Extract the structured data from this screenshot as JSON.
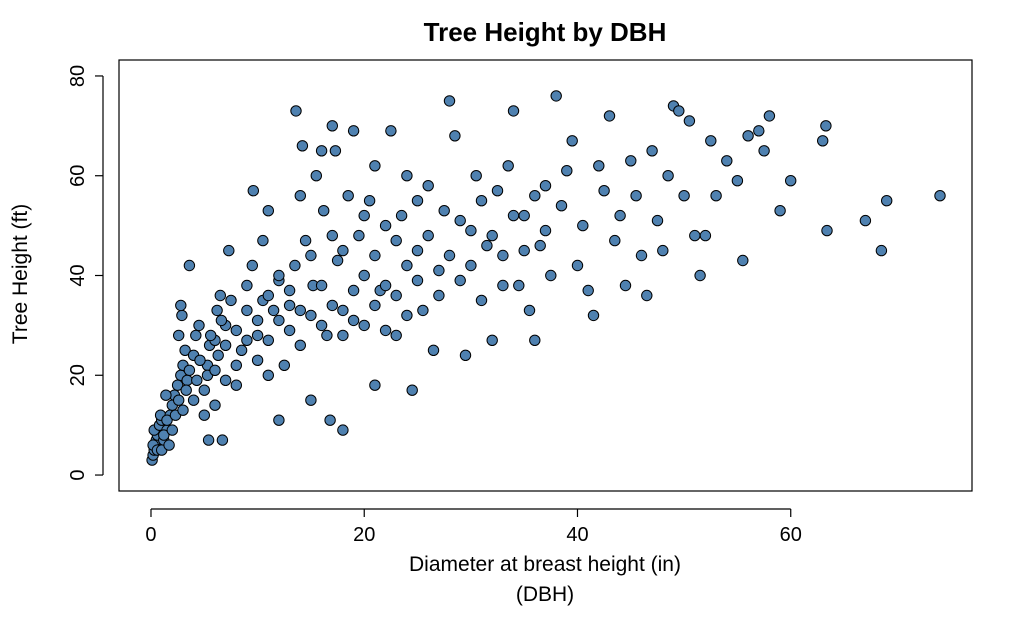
{
  "chart_data": {
    "type": "scatter",
    "title": "Tree Height by DBH",
    "xlabel_line1": "Diameter at breast height (in)",
    "xlabel_line2": "(DBH)",
    "ylabel": "Tree Height (ft)",
    "xlim": [
      -3,
      77
    ],
    "ylim": [
      -3.2,
      83.2
    ],
    "xticks": [
      0,
      20,
      40,
      60
    ],
    "yticks": [
      0,
      20,
      40,
      60,
      80
    ],
    "grid": false,
    "legend": "none",
    "point_fill": "#4f81b0",
    "point_stroke": "#000000",
    "series": [
      {
        "points": [
          [
            0.1,
            3
          ],
          [
            0.2,
            4
          ],
          [
            0.3,
            5
          ],
          [
            0.4,
            6
          ],
          [
            0.5,
            7
          ],
          [
            0.6,
            8
          ],
          [
            0.3,
            9
          ],
          [
            0.8,
            10
          ],
          [
            1.0,
            11
          ],
          [
            0.9,
            12
          ],
          [
            0.2,
            6
          ],
          [
            0.6,
            5
          ],
          [
            1.2,
            7
          ],
          [
            1.5,
            9
          ],
          [
            1.8,
            12
          ],
          [
            2.0,
            14
          ],
          [
            2.2,
            16
          ],
          [
            1.4,
            16
          ],
          [
            2.5,
            18
          ],
          [
            2.8,
            20
          ],
          [
            3.0,
            22
          ],
          [
            3.2,
            25
          ],
          [
            2.6,
            28
          ],
          [
            2.9,
            32
          ],
          [
            2.8,
            34
          ],
          [
            3.6,
            42
          ],
          [
            3.4,
            19
          ],
          [
            4.0,
            24
          ],
          [
            4.2,
            28
          ],
          [
            4.5,
            30
          ],
          [
            5.0,
            12
          ],
          [
            5.3,
            22
          ],
          [
            5.5,
            26
          ],
          [
            6.0,
            27
          ],
          [
            6.2,
            33
          ],
          [
            6.5,
            36
          ],
          [
            5.4,
            7
          ],
          [
            6.7,
            7
          ],
          [
            7.0,
            30
          ],
          [
            7.5,
            35
          ],
          [
            7.3,
            45
          ],
          [
            8.0,
            18
          ],
          [
            8.5,
            25
          ],
          [
            9.0,
            38
          ],
          [
            9.5,
            42
          ],
          [
            9.6,
            57
          ],
          [
            10.0,
            28
          ],
          [
            10.5,
            35
          ],
          [
            10.5,
            47
          ],
          [
            11.0,
            53
          ],
          [
            11.0,
            20
          ],
          [
            11.5,
            33
          ],
          [
            12.0,
            39
          ],
          [
            12.0,
            11
          ],
          [
            12.5,
            22
          ],
          [
            13.0,
            34
          ],
          [
            13.5,
            42
          ],
          [
            13.6,
            73
          ],
          [
            14.0,
            56
          ],
          [
            14.2,
            66
          ],
          [
            14.5,
            47
          ],
          [
            15.0,
            15
          ],
          [
            15.2,
            38
          ],
          [
            15.5,
            60
          ],
          [
            16.0,
            65
          ],
          [
            16.2,
            53
          ],
          [
            16.5,
            28
          ],
          [
            16.8,
            11
          ],
          [
            17.0,
            70
          ],
          [
            17.3,
            65
          ],
          [
            17.5,
            43
          ],
          [
            18.0,
            9
          ],
          [
            18.0,
            33
          ],
          [
            18.5,
            56
          ],
          [
            19.0,
            69
          ],
          [
            19.5,
            48
          ],
          [
            20.0,
            40
          ],
          [
            20.5,
            55
          ],
          [
            21.0,
            62
          ],
          [
            21.0,
            18
          ],
          [
            21.5,
            37
          ],
          [
            22.0,
            50
          ],
          [
            22.5,
            69
          ],
          [
            23.0,
            28
          ],
          [
            23.5,
            52
          ],
          [
            24.0,
            60
          ],
          [
            24.5,
            17
          ],
          [
            25.0,
            45
          ],
          [
            25.5,
            33
          ],
          [
            26.0,
            58
          ],
          [
            26.5,
            25
          ],
          [
            27.0,
            41
          ],
          [
            27.5,
            53
          ],
          [
            28.0,
            75
          ],
          [
            28.5,
            68
          ],
          [
            29.0,
            39
          ],
          [
            29.5,
            24
          ],
          [
            30.0,
            49
          ],
          [
            30.5,
            60
          ],
          [
            31.0,
            35
          ],
          [
            31.5,
            46
          ],
          [
            32.0,
            27
          ],
          [
            32.5,
            57
          ],
          [
            33.0,
            44
          ],
          [
            33.5,
            62
          ],
          [
            34.0,
            73
          ],
          [
            34.5,
            38
          ],
          [
            35.0,
            52
          ],
          [
            35.5,
            33
          ],
          [
            36.0,
            27
          ],
          [
            36.5,
            46
          ],
          [
            37.0,
            58
          ],
          [
            37.5,
            40
          ],
          [
            38.0,
            76
          ],
          [
            38.5,
            54
          ],
          [
            39.0,
            61
          ],
          [
            39.5,
            67
          ],
          [
            40.0,
            42
          ],
          [
            40.5,
            50
          ],
          [
            41.0,
            37
          ],
          [
            41.5,
            32
          ],
          [
            42.0,
            62
          ],
          [
            42.5,
            57
          ],
          [
            43.0,
            72
          ],
          [
            43.5,
            47
          ],
          [
            44.0,
            52
          ],
          [
            44.5,
            38
          ],
          [
            45.0,
            63
          ],
          [
            45.5,
            56
          ],
          [
            46.0,
            44
          ],
          [
            46.5,
            36
          ],
          [
            47.0,
            65
          ],
          [
            47.5,
            51
          ],
          [
            48.0,
            45
          ],
          [
            48.5,
            60
          ],
          [
            49.0,
            74
          ],
          [
            49.5,
            73
          ],
          [
            50.0,
            56
          ],
          [
            50.5,
            71
          ],
          [
            51.0,
            48
          ],
          [
            51.5,
            40
          ],
          [
            52.0,
            48
          ],
          [
            52.5,
            67
          ],
          [
            53.0,
            56
          ],
          [
            54.0,
            63
          ],
          [
            55.0,
            59
          ],
          [
            55.5,
            43
          ],
          [
            56.0,
            68
          ],
          [
            57.0,
            69
          ],
          [
            57.5,
            65
          ],
          [
            58.0,
            72
          ],
          [
            59.0,
            53
          ],
          [
            60.0,
            59
          ],
          [
            63.0,
            67
          ],
          [
            63.3,
            70
          ],
          [
            63.4,
            49
          ],
          [
            67.0,
            51
          ],
          [
            68.5,
            45
          ],
          [
            69.0,
            55
          ],
          [
            74.0,
            56
          ],
          [
            8.0,
            22
          ],
          [
            9.0,
            27
          ],
          [
            10.0,
            31
          ],
          [
            11.0,
            36
          ],
          [
            12.0,
            40
          ],
          [
            13.0,
            29
          ],
          [
            14.0,
            33
          ],
          [
            15.0,
            44
          ],
          [
            16.0,
            38
          ],
          [
            17.0,
            48
          ],
          [
            18.0,
            45
          ],
          [
            19.0,
            37
          ],
          [
            20.0,
            52
          ],
          [
            21.0,
            44
          ],
          [
            22.0,
            38
          ],
          [
            23.0,
            47
          ],
          [
            24.0,
            42
          ],
          [
            25.0,
            55
          ],
          [
            26.0,
            48
          ],
          [
            27.0,
            36
          ],
          [
            28.0,
            44
          ],
          [
            29.0,
            51
          ],
          [
            30.0,
            42
          ],
          [
            31.0,
            55
          ],
          [
            32.0,
            48
          ],
          [
            33.0,
            38
          ],
          [
            34.0,
            52
          ],
          [
            35.0,
            45
          ],
          [
            36.0,
            56
          ],
          [
            37.0,
            49
          ],
          [
            6.0,
            14
          ],
          [
            7.0,
            19
          ],
          [
            8.0,
            29
          ],
          [
            9.0,
            33
          ],
          [
            10.0,
            23
          ],
          [
            11.0,
            27
          ],
          [
            12.0,
            31
          ],
          [
            13.0,
            37
          ],
          [
            14.0,
            26
          ],
          [
            15.0,
            32
          ],
          [
            16.0,
            30
          ],
          [
            17.0,
            34
          ],
          [
            18.0,
            28
          ],
          [
            19.0,
            31
          ],
          [
            20.0,
            30
          ],
          [
            21.0,
            34
          ],
          [
            22.0,
            29
          ],
          [
            23.0,
            36
          ],
          [
            24.0,
            32
          ],
          [
            25.0,
            39
          ],
          [
            1.0,
            5
          ],
          [
            1.2,
            8
          ],
          [
            1.5,
            11
          ],
          [
            1.7,
            6
          ],
          [
            2.0,
            9
          ],
          [
            2.3,
            12
          ],
          [
            2.6,
            15
          ],
          [
            3.0,
            13
          ],
          [
            3.3,
            17
          ],
          [
            3.6,
            21
          ],
          [
            4.0,
            15
          ],
          [
            4.3,
            19
          ],
          [
            4.6,
            23
          ],
          [
            5.0,
            17
          ],
          [
            5.3,
            20
          ],
          [
            5.6,
            28
          ],
          [
            6.0,
            21
          ],
          [
            6.3,
            24
          ],
          [
            6.6,
            31
          ],
          [
            7.0,
            26
          ]
        ]
      }
    ]
  }
}
